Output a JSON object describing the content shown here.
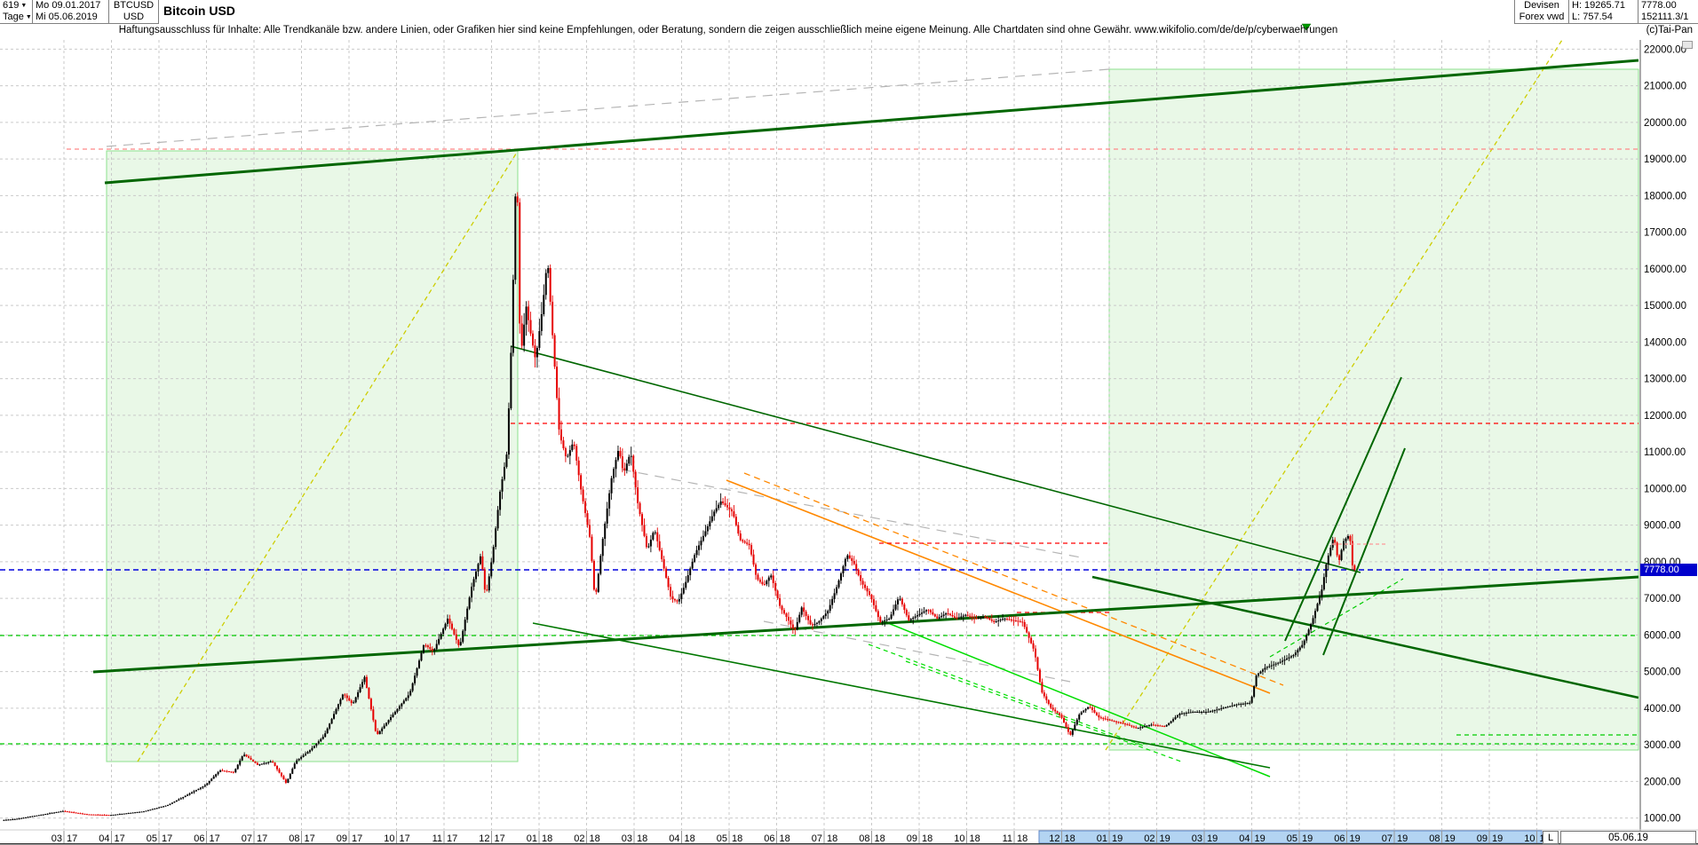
{
  "header": {
    "periods": "619",
    "timeframe": "Tage",
    "date_from": "Mo 09.01.2017",
    "date_to": "Mi 05.06.2019",
    "symbol": "BTCUSD",
    "currency": "USD",
    "title": "Bitcoin USD",
    "market": "Devisen",
    "feed": "Forex vwd",
    "high_label": "H: 19265.71",
    "low_label": "L: 757.54",
    "last_price": "7778.00",
    "volume": "152111.3/1",
    "copyright": "(c)Tai-Pan"
  },
  "icons": {
    "dropdown": "▼"
  },
  "disclaimer": "Haftungsausschluss für Inhalte: Alle Trendkanäle bzw. andere Linien, oder Grafiken hier sind keine Empfehlungen, oder Beratung, sondern die zeigen ausschließlich meine eigene Meinung. Alle Chartdaten sind ohne Gewähr.   www.wikifolio.com/de/de/p/cyberwaehrungen",
  "status_bar": {
    "left_marker": "L",
    "current_date": "05.06.19"
  },
  "axis": {
    "current_chip": "7778.00"
  },
  "chart_data": {
    "type": "candlestick",
    "title": "Bitcoin USD",
    "symbol": "BTCUSD",
    "timeframe_label": "Tage",
    "date_range": "09.01.2017 - 05.06.2019",
    "current_price": 7778.0,
    "visible_high": 19265.71,
    "visible_low": 757.54,
    "y_axis": {
      "min": 1000,
      "max": 22000,
      "step": 1000,
      "format": "0.00"
    },
    "x_axis": {
      "tick_labels": [
        "03 17",
        "04 17",
        "05 17",
        "06 17",
        "07 17",
        "08 17",
        "09 17",
        "10 17",
        "11 17",
        "12 17",
        "01 18",
        "02 18",
        "03 18",
        "04 18",
        "05 18",
        "06 18",
        "07 18",
        "08 18",
        "09 18",
        "10 18",
        "11 18",
        "12 18",
        "01 19",
        "02 19",
        "03 19",
        "04 19",
        "05 19",
        "06 19",
        "07 19",
        "08 19",
        "09 19",
        "10 19"
      ],
      "t_first": 2,
      "t_step": 1
    },
    "highlight_band": {
      "from_label": "12 18",
      "to_label": "10 19"
    },
    "price_path": {
      "t": [
        0.3,
        1,
        2,
        2.5,
        3,
        3.7,
        4.2,
        4.5,
        5,
        5.3,
        5.6,
        5.8,
        6.1,
        6.4,
        6.7,
        6.9,
        7.2,
        7.5,
        7.9,
        8.1,
        8.35,
        8.6,
        8.9,
        9.3,
        9.6,
        9.8,
        10.1,
        10.35,
        10.6,
        10.8,
        10.9,
        11.05,
        11.2,
        11.35,
        11.45,
        11.5,
        11.55,
        11.63,
        11.75,
        11.85,
        11.95,
        12.1,
        12.2,
        12.3,
        12.45,
        12.6,
        12.75,
        12.9,
        13.1,
        13.2,
        13.35,
        13.55,
        13.7,
        13.8,
        13.95,
        14.1,
        14.3,
        14.45,
        14.6,
        14.8,
        14.95,
        15.1,
        15.3,
        15.55,
        15.7,
        15.85,
        16.1,
        16.25,
        16.45,
        16.6,
        16.75,
        16.9,
        17.1,
        17.25,
        17.4,
        17.55,
        17.75,
        17.9,
        18.1,
        18.3,
        18.5,
        18.65,
        18.8,
        19.0,
        19.2,
        19.4,
        19.6,
        19.8,
        20.0,
        20.2,
        20.4,
        20.6,
        20.8,
        21.0,
        21.2,
        21.4,
        21.6,
        21.8,
        22.0,
        22.2,
        22.45,
        22.6,
        22.8,
        23.0,
        23.2,
        23.4,
        23.6,
        23.8,
        24.1,
        24.4,
        24.6,
        24.9,
        25.2,
        25.5,
        25.8,
        26.1,
        26.4,
        26.7,
        27.0,
        27.12,
        27.3,
        27.6,
        27.9,
        28.1,
        28.3,
        28.5,
        28.6,
        28.75,
        28.85,
        28.95,
        29.05,
        29.1,
        29.15
      ],
      "usd": [
        900,
        970,
        1190,
        1100,
        1080,
        1180,
        1350,
        1550,
        1900,
        2300,
        2250,
        2750,
        2450,
        2550,
        1950,
        2550,
        2850,
        3250,
        4400,
        4100,
        4850,
        3250,
        3750,
        4400,
        5750,
        5550,
        6450,
        5650,
        7300,
        8200,
        7000,
        8250,
        9900,
        11000,
        14300,
        16800,
        19250,
        13500,
        15000,
        14200,
        13500,
        15000,
        16300,
        14300,
        11500,
        10800,
        11300,
        10000,
        8600,
        6900,
        8500,
        10300,
        11100,
        10400,
        11000,
        9600,
        8300,
        8900,
        8100,
        7000,
        6900,
        7400,
        8200,
        8900,
        9350,
        9650,
        9350,
        8600,
        8450,
        7550,
        7350,
        7650,
        6750,
        6450,
        6100,
        6750,
        6250,
        6350,
        6650,
        7350,
        8200,
        7950,
        7450,
        7050,
        6350,
        6450,
        7050,
        6400,
        6550,
        6700,
        6450,
        6600,
        6450,
        6550,
        6450,
        6500,
        6350,
        6450,
        6400,
        6350,
        5550,
        4450,
        4000,
        3800,
        3250,
        3850,
        4050,
        3750,
        3650,
        3550,
        3450,
        3550,
        3500,
        3850,
        3900,
        3900,
        4000,
        4100,
        4150,
        4900,
        5100,
        5250,
        5450,
        5750,
        6400,
        7250,
        8000,
        8700,
        7950,
        8550,
        8700,
        8550,
        7778
      ]
    },
    "levels": {
      "ath_line": 19265.71,
      "resistance_red": 11786,
      "short_red": [
        8500,
        6560
      ],
      "current_blue": 7778,
      "green_support": [
        5900,
        3300,
        3050
      ],
      "short_pale_red": 8900
    },
    "annotations": {
      "boxes": [
        [
          120,
          170,
          583,
          858
        ],
        [
          1249,
          78,
          1845,
          845
        ]
      ],
      "lines_back": [
        [
          120,
          165,
          1249,
          78,
          "#b5b5b5",
          "11 8",
          1.2
        ],
        [
          700,
          529,
          1222,
          629,
          "#b5b5b5",
          "11 8",
          1.2
        ],
        [
          860,
          700,
          1205,
          768,
          "#b5b5b5",
          "11 8",
          1.2
        ],
        [
          155,
          858,
          583,
          170,
          "#cdcd00",
          "5 4",
          1.3
        ],
        [
          1245,
          845,
          1759,
          45,
          "#cdcd00",
          "5 4",
          1.3
        ],
        [
          995,
          700,
          1430,
          875,
          "#00dd00",
          null,
          1.5
        ],
        [
          978,
          726,
          1290,
          841,
          "#00dd00",
          "5 4",
          1.2
        ],
        [
          1020,
          745,
          1330,
          858,
          "#00dd00",
          "5 4",
          1.2
        ],
        [
          1430,
          740,
          1580,
          652,
          "#00cc00",
          "5 4",
          1.2
        ],
        [
          0,
          716,
          1845,
          716,
          "#00cc00",
          "5 4",
          1.2
        ],
        [
          0,
          838,
          1845,
          838,
          "#00cc00",
          "5 4",
          1.2
        ],
        [
          1640,
          828,
          1845,
          828,
          "#00cc00",
          "5 4",
          1.2
        ],
        [
          818,
          541,
          1430,
          781,
          "#ff8800",
          null,
          1.6
        ],
        [
          838,
          533,
          1445,
          772,
          "#ff8800",
          "7 5",
          1.3
        ],
        [
          75,
          168,
          1845,
          168,
          "#ff8888",
          "5 4",
          1.2
        ],
        [
          575,
          477,
          1845,
          477,
          "#ff0000",
          "5 4",
          1.2
        ],
        [
          990,
          612,
          1249,
          612,
          "#ff0000",
          "5 4",
          1.2
        ],
        [
          1145,
          690,
          1249,
          690,
          "#ff0000",
          "5 4",
          1.2
        ],
        [
          0,
          642,
          1845,
          642,
          "#0000dd",
          "6 4",
          1.5
        ],
        [
          118,
          206,
          1845,
          68,
          "#006600",
          null,
          3
        ],
        [
          105,
          757,
          1845,
          650,
          "#006600",
          null,
          3
        ],
        [
          575,
          390,
          1532,
          645,
          "#006600",
          null,
          1.6
        ],
        [
          600,
          702,
          1430,
          865,
          "#007700",
          null,
          1.6
        ],
        [
          1230,
          650,
          1845,
          786,
          "#006600",
          null,
          2.5
        ]
      ],
      "lines_front": [
        [
          1447,
          722,
          1578,
          425,
          "#006600",
          null,
          2
        ],
        [
          1490,
          738,
          1582,
          505,
          "#006600",
          null,
          2
        ],
        [
          1500,
          613,
          1562,
          613,
          "#ff9999",
          "4 3",
          1.2
        ]
      ],
      "marker_triangle": [
        1466,
        27,
        1476,
        27,
        1471,
        34
      ]
    },
    "colors": {
      "up": "#000000",
      "down": "#e60000",
      "grid": "#c9c9c9",
      "background": "#ffffff",
      "box_fill": "#e9f8e7",
      "box_border": "#8ce08c",
      "current_price_line": "#0000dd",
      "highlight_band": "#b3d4f2",
      "highlight_border": "#5f87c9",
      "marker_green": "#009900"
    }
  }
}
